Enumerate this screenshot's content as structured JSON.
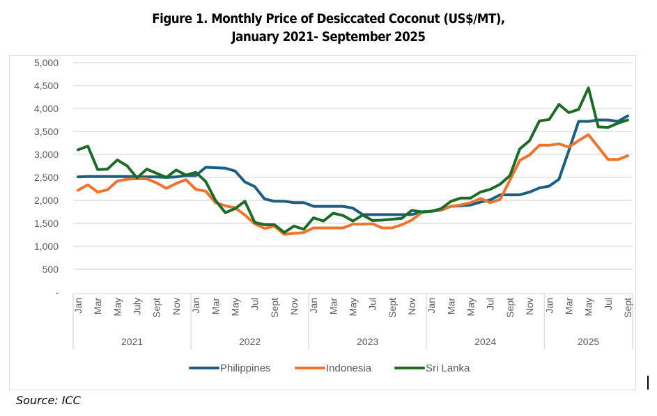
{
  "chart_data": {
    "type": "line",
    "title_line1": "Figure 1. Monthly Price of Desiccated Coconut (US$/MT),",
    "title_line2": "January 2021- September 2025",
    "xlabel": "",
    "ylabel": "",
    "ylim": [
      0,
      5000
    ],
    "yticks": [
      0,
      500,
      1000,
      1500,
      2000,
      2500,
      3000,
      3500,
      4000,
      4500,
      5000
    ],
    "ytick_labels": [
      "-",
      "500",
      "1,000",
      "1,500",
      "2,000",
      "2,500",
      "3,000",
      "3,500",
      "4,000",
      "4,500",
      "5,000"
    ],
    "grid": true,
    "legend_position": "bottom",
    "years": [
      "2021",
      "2022",
      "2023",
      "2024",
      "2025"
    ],
    "month_labels": [
      {
        "index": 0,
        "label": "Jan"
      },
      {
        "index": 2,
        "label": "Mar"
      },
      {
        "index": 4,
        "label": "May"
      },
      {
        "index": 6,
        "label": "July"
      },
      {
        "index": 8,
        "label": "Sept"
      },
      {
        "index": 10,
        "label": "Nov"
      },
      {
        "index": 12,
        "label": "Jan"
      },
      {
        "index": 14,
        "label": "Mar"
      },
      {
        "index": 16,
        "label": "May"
      },
      {
        "index": 18,
        "label": "Jul"
      },
      {
        "index": 20,
        "label": "Sept"
      },
      {
        "index": 22,
        "label": "Nov"
      },
      {
        "index": 24,
        "label": "Jan"
      },
      {
        "index": 26,
        "label": "Mar"
      },
      {
        "index": 28,
        "label": "May"
      },
      {
        "index": 30,
        "label": "Jul"
      },
      {
        "index": 32,
        "label": "Sept"
      },
      {
        "index": 34,
        "label": "Nov"
      },
      {
        "index": 36,
        "label": "Jan"
      },
      {
        "index": 38,
        "label": "Mar"
      },
      {
        "index": 40,
        "label": "May"
      },
      {
        "index": 42,
        "label": "Jul"
      },
      {
        "index": 44,
        "label": "Sept"
      },
      {
        "index": 46,
        "label": "Nov"
      },
      {
        "index": 48,
        "label": "Jan"
      },
      {
        "index": 50,
        "label": "Mar"
      },
      {
        "index": 52,
        "label": "May"
      },
      {
        "index": 54,
        "label": "Jul"
      },
      {
        "index": 56,
        "label": "Sept"
      }
    ],
    "series": [
      {
        "name": "Philippines",
        "color": "#1b5e82",
        "values": [
          2510,
          2520,
          2520,
          2520,
          2520,
          2520,
          2510,
          2510,
          2510,
          2500,
          2510,
          2540,
          2540,
          2720,
          2710,
          2700,
          2640,
          2400,
          2300,
          2030,
          1980,
          1980,
          1950,
          1950,
          1870,
          1870,
          1870,
          1870,
          1830,
          1690,
          1690,
          1690,
          1690,
          1690,
          1690,
          1750,
          1760,
          1790,
          1870,
          1880,
          1900,
          1960,
          2010,
          2120,
          2120,
          2120,
          2180,
          2270,
          2310,
          2460,
          3080,
          3720,
          3720,
          3750,
          3750,
          3720,
          3840
        ]
      },
      {
        "name": "Indonesia",
        "color": "#ed7430",
        "values": [
          2220,
          2340,
          2180,
          2230,
          2420,
          2460,
          2470,
          2470,
          2380,
          2260,
          2370,
          2450,
          2240,
          2200,
          1950,
          1880,
          1840,
          1680,
          1490,
          1390,
          1440,
          1260,
          1280,
          1300,
          1400,
          1400,
          1400,
          1400,
          1480,
          1480,
          1490,
          1400,
          1400,
          1470,
          1570,
          1730,
          1770,
          1800,
          1870,
          1900,
          1950,
          2040,
          1950,
          2020,
          2440,
          2870,
          2990,
          3200,
          3200,
          3230,
          3160,
          3300,
          3430,
          3160,
          2890,
          2890,
          2970
        ]
      },
      {
        "name": "Sri Lanka",
        "color": "#1e6b27",
        "values": [
          3100,
          3180,
          2670,
          2680,
          2880,
          2750,
          2490,
          2680,
          2590,
          2500,
          2660,
          2550,
          2610,
          2410,
          2000,
          1730,
          1820,
          1980,
          1520,
          1470,
          1470,
          1300,
          1440,
          1370,
          1620,
          1550,
          1720,
          1670,
          1550,
          1680,
          1560,
          1570,
          1590,
          1610,
          1780,
          1750,
          1760,
          1820,
          1980,
          2050,
          2050,
          2180,
          2240,
          2350,
          2540,
          3120,
          3300,
          3730,
          3760,
          4090,
          3910,
          3980,
          4450,
          3600,
          3590,
          3680,
          3750
        ]
      }
    ]
  },
  "source": "Source: ICC"
}
